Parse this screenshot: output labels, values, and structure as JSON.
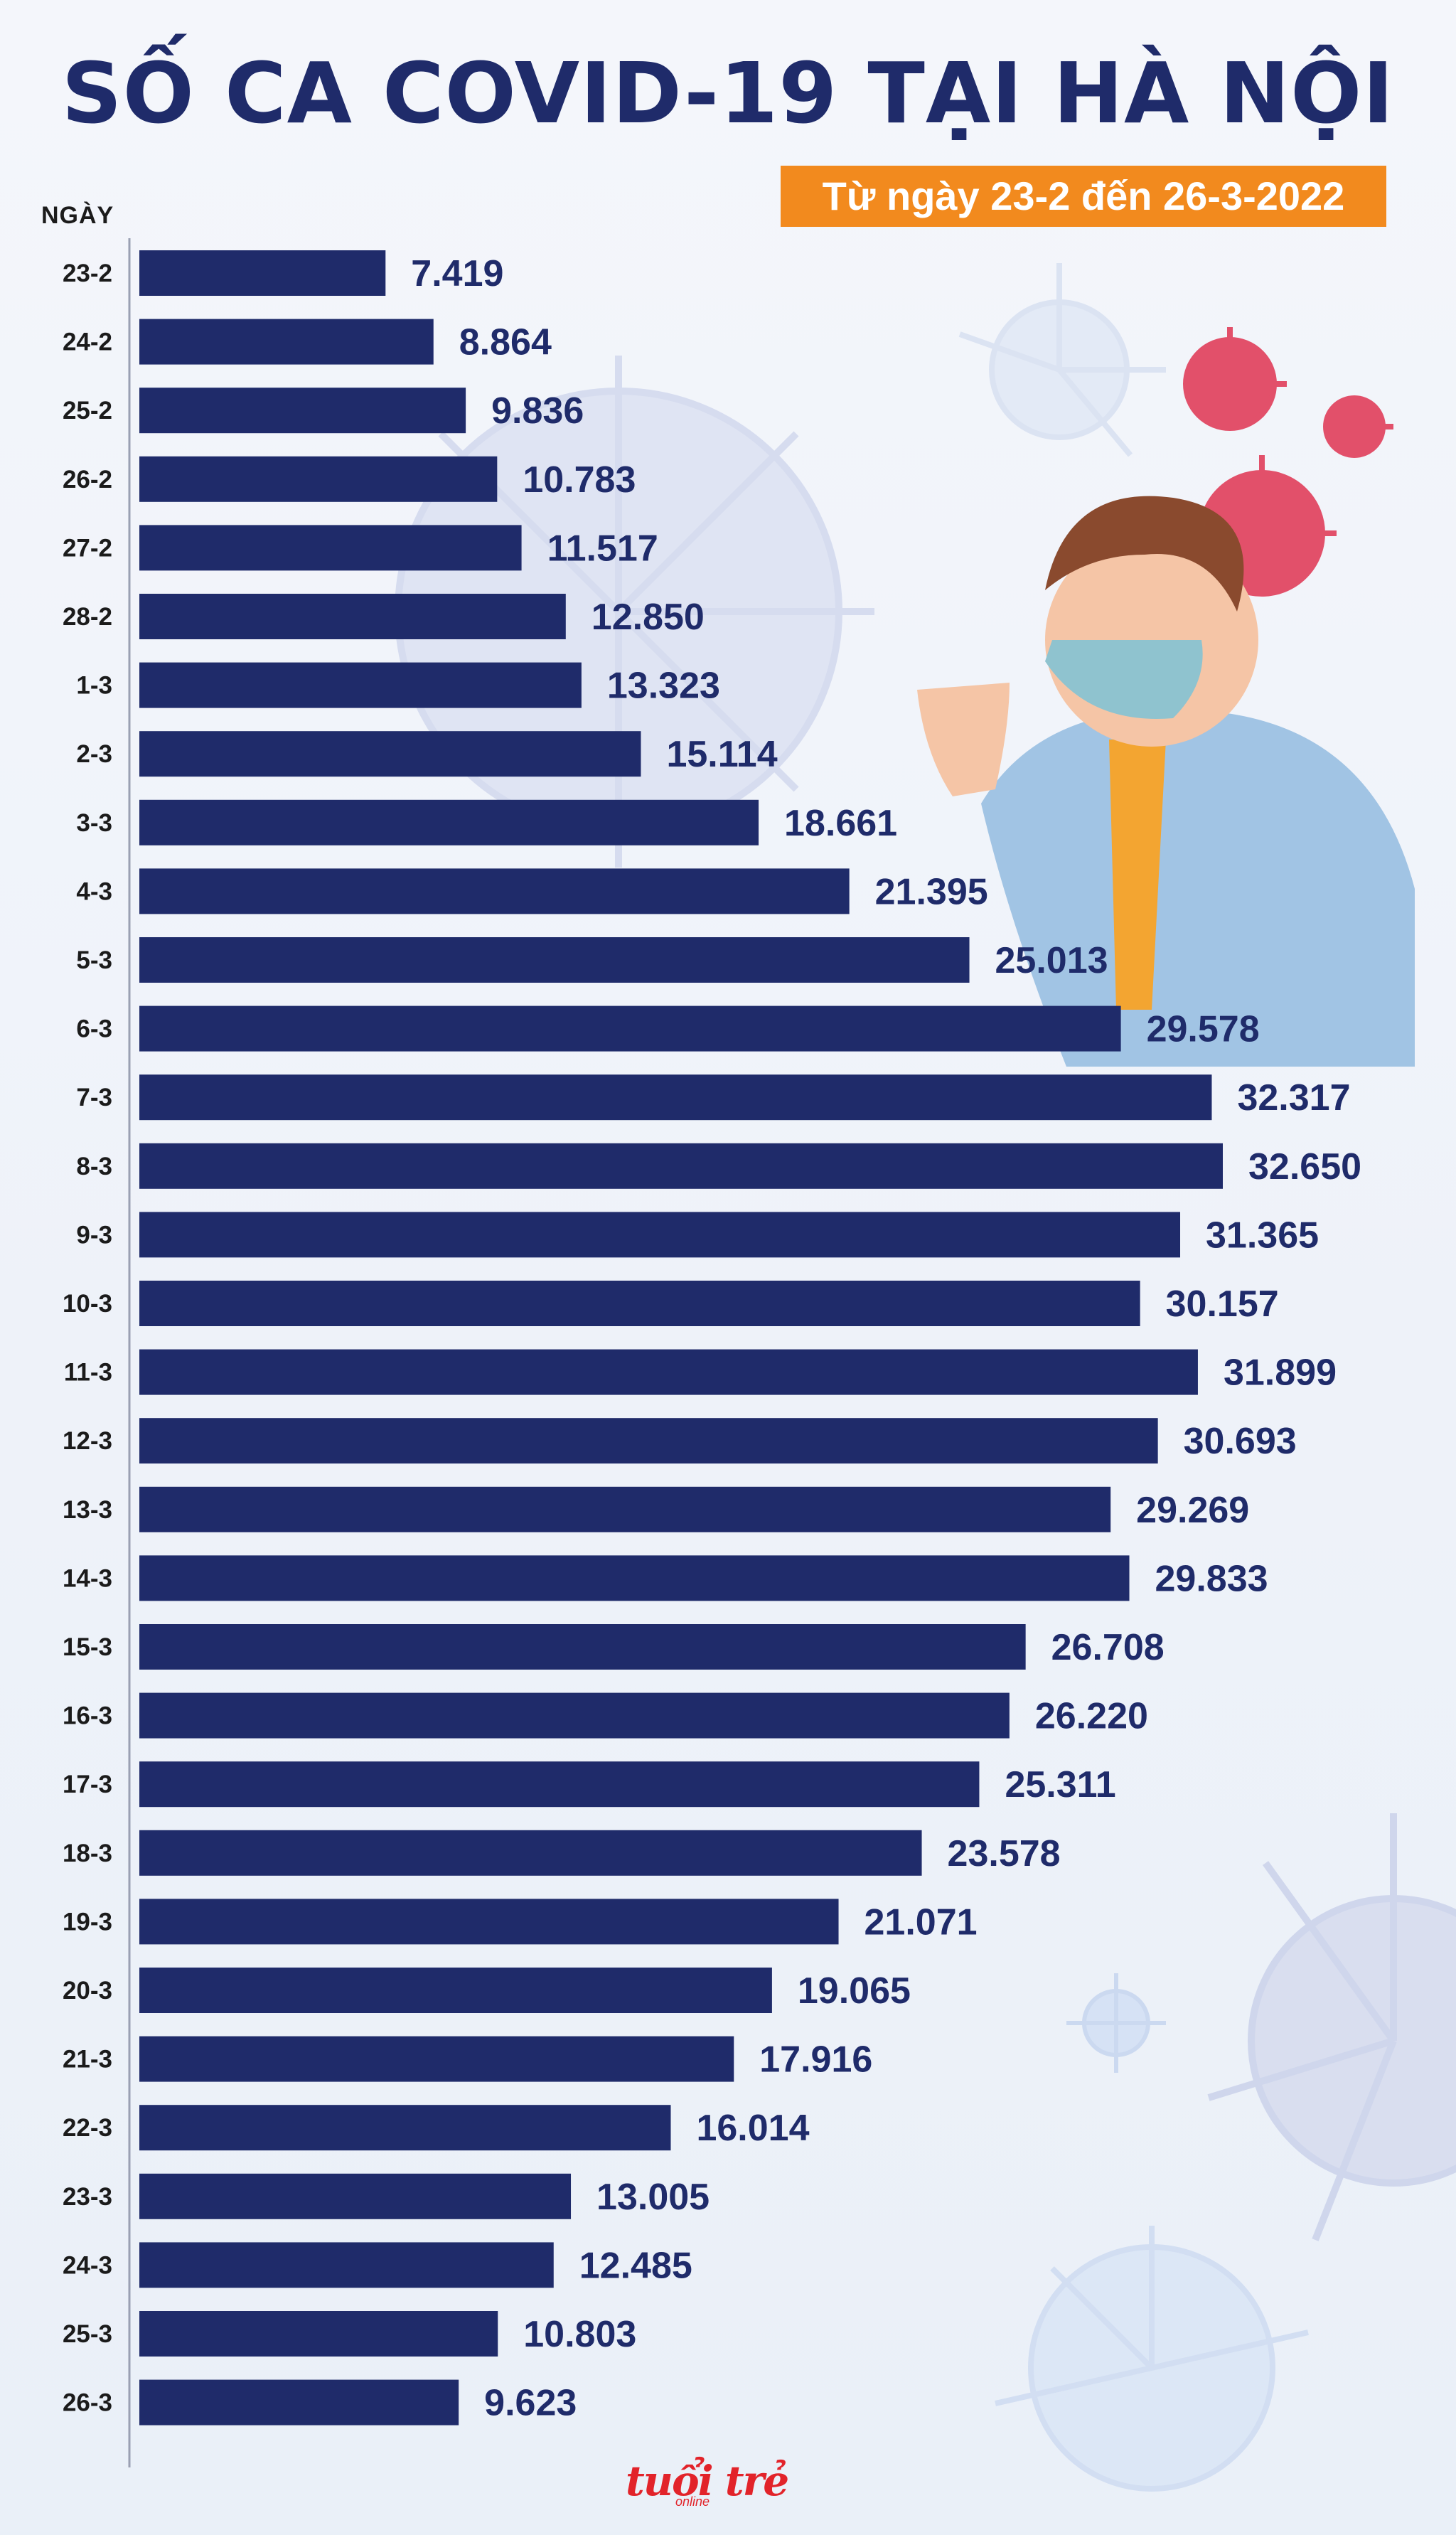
{
  "title": "SỐ CA COVID-19 TẠI HÀ NỘI",
  "subtitle": "Từ ngày 23-2 đến 26-3-2022",
  "logo": "tuổi trẻ",
  "logo_sub": "online",
  "colors": {
    "bar": "#1f2b6a",
    "title": "#1f2b6a",
    "subtitle_bg": "#f28a1e",
    "logo": "#e2232a"
  },
  "chart_data": {
    "type": "bar",
    "orientation": "horizontal",
    "ylabel": "NGÀY",
    "xlim": [
      0,
      32650
    ],
    "grid": false,
    "categories": [
      "23-2",
      "24-2",
      "25-2",
      "26-2",
      "27-2",
      "28-2",
      "1-3",
      "2-3",
      "3-3",
      "4-3",
      "5-3",
      "6-3",
      "7-3",
      "8-3",
      "9-3",
      "10-3",
      "11-3",
      "12-3",
      "13-3",
      "14-3",
      "15-3",
      "16-3",
      "17-3",
      "18-3",
      "19-3",
      "20-3",
      "21-3",
      "22-3",
      "23-3",
      "24-3",
      "25-3",
      "26-3"
    ],
    "values": [
      7419,
      8864,
      9836,
      10783,
      11517,
      12850,
      13323,
      15114,
      18661,
      21395,
      25013,
      29578,
      32317,
      32650,
      31365,
      30157,
      31899,
      30693,
      29269,
      29833,
      26708,
      26220,
      25311,
      23578,
      21071,
      19065,
      17916,
      16014,
      13005,
      12485,
      10803,
      9623
    ],
    "value_labels": [
      "7.419",
      "8.864",
      "9.836",
      "10.783",
      "11.517",
      "12.850",
      "13.323",
      "15.114",
      "18.661",
      "21.395",
      "25.013",
      "29.578",
      "32.317",
      "32.650",
      "31.365",
      "30.157",
      "31.899",
      "30.693",
      "29.269",
      "29.833",
      "26.708",
      "26.220",
      "25.311",
      "23.578",
      "21.071",
      "19.065",
      "17.916",
      "16.014",
      "13.005",
      "12.485",
      "10.803",
      "9.623"
    ]
  }
}
